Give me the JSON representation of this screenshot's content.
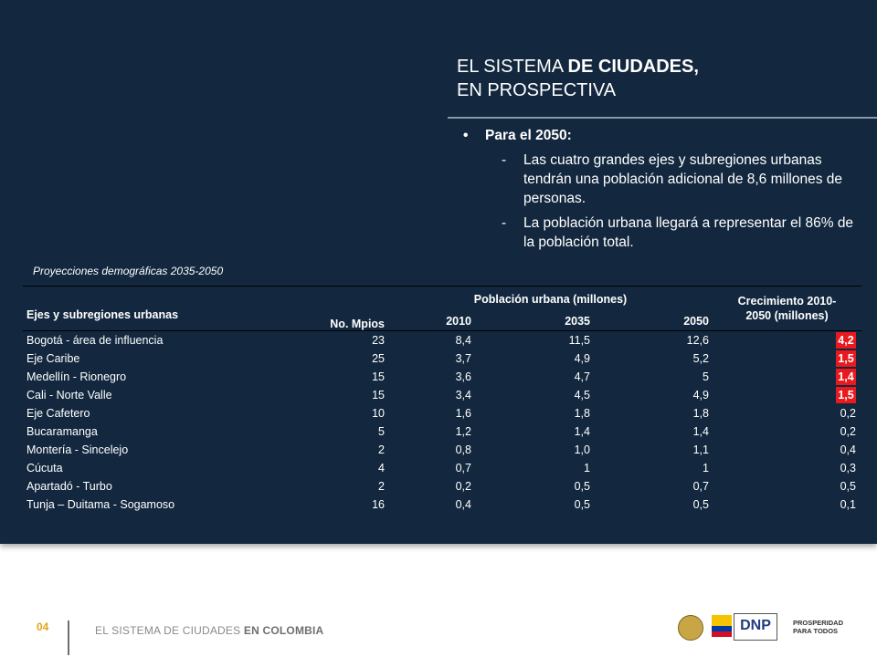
{
  "title": {
    "line1_plain": "EL SISTEMA",
    "line1_bold": "DE CIUDADES,",
    "line2": "EN PROSPECTIVA"
  },
  "bullets": {
    "main": "Para el 2050:",
    "subs": [
      "Las cuatro grandes ejes y subregiones urbanas tendrán una población adicional de 8,6 millones de personas.",
      "La población urbana llegará a representar el 86% de la población total."
    ]
  },
  "caption": "Proyecciones demográficas 2035-2050",
  "table": {
    "headers": {
      "region": "Ejes y subregiones urbanas",
      "mpios": "No. Mpios",
      "poblacion": "Población urbana (millones)",
      "y2010": "2010",
      "y2035": "2035",
      "y2050": "2050",
      "crecimiento": "Crecimiento 2010-2050 (millones)"
    },
    "rows": [
      {
        "region": "Bogotá - área de influencia",
        "mpios": "23",
        "y2010": "8,4",
        "y2035": "11,5",
        "y2050": "12,6",
        "crec": "4,2",
        "highlight": true
      },
      {
        "region": "Eje Caribe",
        "mpios": "25",
        "y2010": "3,7",
        "y2035": "4,9",
        "y2050": "5,2",
        "crec": "1,5",
        "highlight": true
      },
      {
        "region": "Medellín - Rionegro",
        "mpios": "15",
        "y2010": "3,6",
        "y2035": "4,7",
        "y2050": "5",
        "crec": "1,4",
        "highlight": true
      },
      {
        "region": "Cali - Norte Valle",
        "mpios": "15",
        "y2010": "3,4",
        "y2035": "4,5",
        "y2050": "4,9",
        "crec": "1,5",
        "highlight": true
      },
      {
        "region": "Eje Cafetero",
        "mpios": "10",
        "y2010": "1,6",
        "y2035": "1,8",
        "y2050": "1,8",
        "crec": "0,2",
        "highlight": false
      },
      {
        "region": "Bucaramanga",
        "mpios": "5",
        "y2010": "1,2",
        "y2035": "1,4",
        "y2050": "1,4",
        "crec": "0,2",
        "highlight": false
      },
      {
        "region": "Montería - Sincelejo",
        "mpios": "2",
        "y2010": "0,8",
        "y2035": "1,0",
        "y2050": "1,1",
        "crec": "0,4",
        "highlight": false
      },
      {
        "region": "Cúcuta",
        "mpios": "4",
        "y2010": "0,7",
        "y2035": "1",
        "y2050": "1",
        "crec": "0,3",
        "highlight": false
      },
      {
        "region": "Apartadó - Turbo",
        "mpios": "2",
        "y2010": "0,2",
        "y2035": "0,5",
        "y2050": "0,7",
        "crec": "0,5",
        "highlight": false
      },
      {
        "region": "Tunja – Duitama - Sogamoso",
        "mpios": "16",
        "y2010": "0,4",
        "y2035": "0,5",
        "y2050": "0,5",
        "crec": "0,1",
        "highlight": false
      }
    ]
  },
  "footer": {
    "page_number": "04",
    "text_plain": "EL SISTEMA DE CIUDADES",
    "text_bold": "EN COLOMBIA",
    "logo_dnp": "DNP",
    "logo_pros_1": "PROSPERIDAD",
    "logo_pros_2": "PARA TODOS"
  },
  "colors": {
    "panel": "#13283f",
    "highlight": "#e8191f",
    "page_number": "#e3a21a"
  }
}
